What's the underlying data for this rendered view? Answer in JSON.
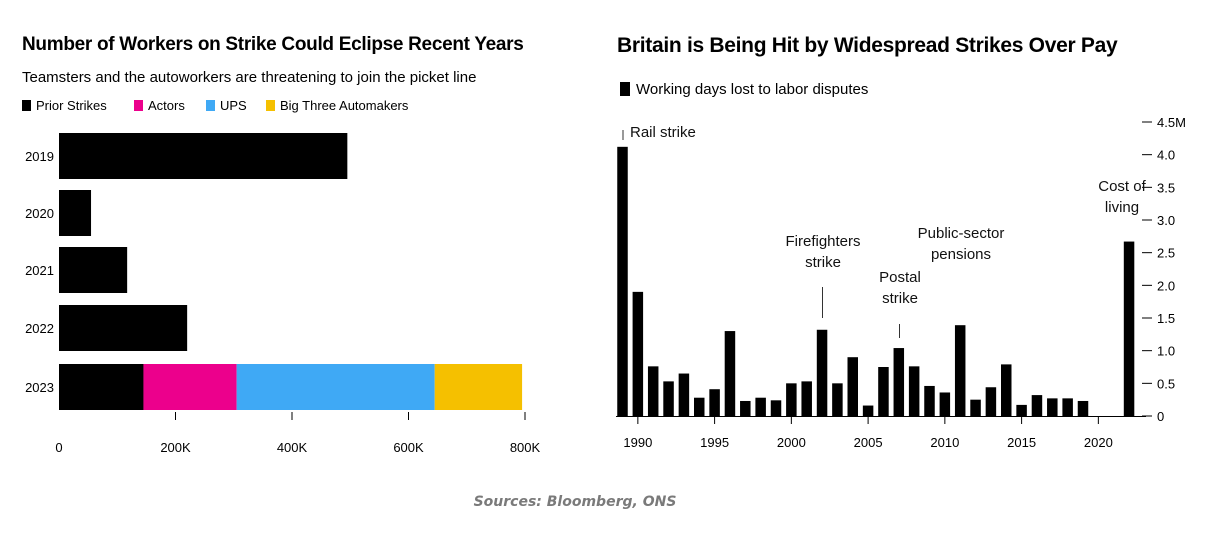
{
  "source_note": "Sources: Bloomberg, ONS",
  "colors": {
    "prior": "#000000",
    "actors": "#ec008c",
    "ups": "#3fa9f5",
    "big3": "#f5c000",
    "bar2": "#000000",
    "axis": "#000000",
    "source": "#7a7a7a"
  },
  "chart_data": [
    {
      "type": "bar",
      "orientation": "horizontal",
      "stacked": true,
      "title": "Number of Workers on Strike Could Eclipse Recent Years",
      "subtitle": "Teamsters and the autoworkers are threatening to join the picket line",
      "categories": [
        "2019",
        "2020",
        "2021",
        "2022",
        "2023"
      ],
      "series": [
        {
          "name": "Prior Strikes",
          "values": [
            495000,
            55000,
            117000,
            220000,
            145000
          ]
        },
        {
          "name": "Actors",
          "values": [
            0,
            0,
            0,
            0,
            160000
          ]
        },
        {
          "name": "UPS",
          "values": [
            0,
            0,
            0,
            0,
            340000
          ]
        },
        {
          "name": "Big Three Automakers",
          "values": [
            0,
            0,
            0,
            0,
            150000
          ]
        }
      ],
      "xlim": [
        0,
        800000
      ],
      "xticks": [
        0,
        200000,
        400000,
        600000,
        800000
      ],
      "xtick_labels": [
        "0",
        "200K",
        "400K",
        "600K",
        "800K"
      ],
      "legend": "top-left",
      "grid": false
    },
    {
      "type": "bar",
      "title": "Britain is Being Hit by Widespread Strikes Over Pay",
      "series": [
        {
          "name": "Working days lost to labor disputes",
          "values": [
            4.12,
            1.9,
            0.76,
            0.53,
            0.65,
            0.28,
            0.41,
            1.3,
            0.23,
            0.28,
            0.24,
            0.5,
            0.53,
            1.32,
            0.5,
            0.9,
            0.16,
            0.75,
            1.04,
            0.76,
            0.46,
            0.36,
            1.39,
            0.25,
            0.44,
            0.79,
            0.17,
            0.32,
            0.27,
            0.27,
            0.23,
            0.0,
            0.0,
            2.67
          ]
        }
      ],
      "x": [
        1989,
        1990,
        1991,
        1992,
        1993,
        1994,
        1995,
        1996,
        1997,
        1998,
        1999,
        2000,
        2001,
        2002,
        2003,
        2004,
        2005,
        2006,
        2007,
        2008,
        2009,
        2010,
        2011,
        2012,
        2013,
        2014,
        2015,
        2016,
        2017,
        2018,
        2019,
        2020,
        2021,
        2022
      ],
      "xtick_values": [
        1990,
        1995,
        2000,
        2005,
        2010,
        2015,
        2020
      ],
      "xtick_labels": [
        "1990",
        "1995",
        "2000",
        "2005",
        "2010",
        "2015",
        "2020"
      ],
      "ylim": [
        0,
        4.5
      ],
      "ytick_values": [
        0,
        0.5,
        1.0,
        1.5,
        2.0,
        2.5,
        3.0,
        3.5,
        4.0,
        4.5
      ],
      "ytick_labels": [
        "0",
        "0.5",
        "1.0",
        "1.5",
        "2.0",
        "2.5",
        "3.0",
        "3.5",
        "4.0",
        "4.5M"
      ],
      "y_axis_side": "right",
      "legend": "top-left",
      "grid": false,
      "annotations": [
        {
          "lines": [
            "Rail strike"
          ],
          "x": 1989
        },
        {
          "lines": [
            "Firefighters",
            "strike"
          ],
          "x": 2002
        },
        {
          "lines": [
            "Postal",
            "strike"
          ],
          "x": 2007
        },
        {
          "lines": [
            "Public-sector",
            "pensions"
          ],
          "x": 2011
        },
        {
          "lines": [
            "Cost of",
            "living"
          ],
          "x": 2022
        }
      ]
    }
  ]
}
